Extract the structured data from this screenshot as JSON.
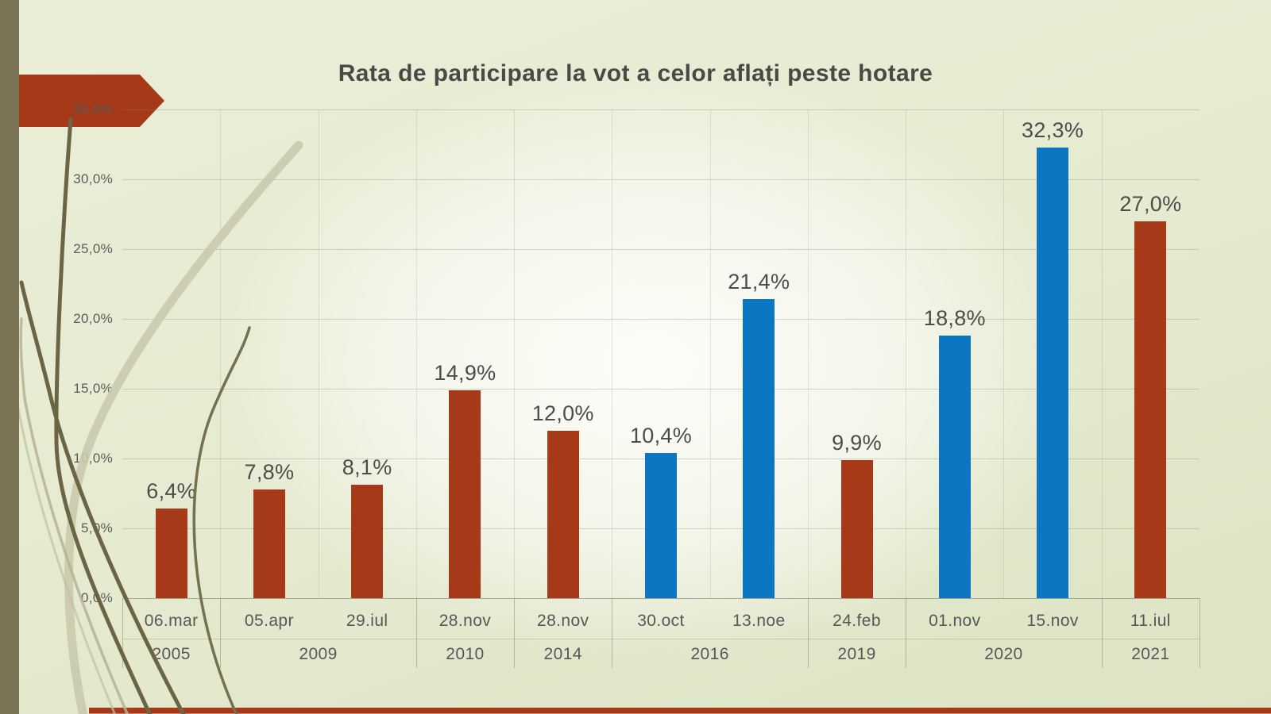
{
  "slide": {
    "theme_colors": {
      "background": "#e8ecd4",
      "band_olive": "#7a7355",
      "accent_rust": "#a63917",
      "accent_blue": "#0b76c2",
      "axis_text": "#5b5b59",
      "title_text": "#4a4945"
    }
  },
  "chart_data": {
    "type": "bar",
    "title": "Rata de participare la vot a celor aflați peste hotare",
    "xlabel": "",
    "ylabel": "",
    "ylim": [
      0,
      35
    ],
    "grid": true,
    "legend": "none",
    "y_ticks": [
      "0,0%",
      "5,0%",
      "10,0%",
      "15,0%",
      "20,0%",
      "25,0%",
      "30,0%",
      "35,0%"
    ],
    "y_tick_values": [
      0,
      5,
      10,
      15,
      20,
      25,
      30,
      35
    ],
    "categories": [
      "06.mar",
      "05.apr",
      "29.iul",
      "28.nov",
      "28.nov",
      "30.oct",
      "13.noe",
      "24.feb",
      "01.nov",
      "15.nov",
      "11.iul"
    ],
    "values": [
      6.4,
      7.8,
      8.1,
      14.9,
      12.0,
      10.4,
      21.4,
      9.9,
      18.8,
      32.3,
      27.0
    ],
    "bars": [
      {
        "date": "06.mar",
        "year": "2005",
        "value": 6.4,
        "label": "6,4%",
        "color": "rust"
      },
      {
        "date": "05.apr",
        "year": "2009",
        "value": 7.8,
        "label": "7,8%",
        "color": "rust"
      },
      {
        "date": "29.iul",
        "year": "2009",
        "value": 8.1,
        "label": "8,1%",
        "color": "rust"
      },
      {
        "date": "28.nov",
        "year": "2010",
        "value": 14.9,
        "label": "14,9%",
        "color": "rust"
      },
      {
        "date": "28.nov",
        "year": "2014",
        "value": 12.0,
        "label": "12,0%",
        "color": "rust"
      },
      {
        "date": "30.oct",
        "year": "2016",
        "value": 10.4,
        "label": "10,4%",
        "color": "blue"
      },
      {
        "date": "13.noe",
        "year": "2016",
        "value": 21.4,
        "label": "21,4%",
        "color": "blue"
      },
      {
        "date": "24.feb",
        "year": "2019",
        "value": 9.9,
        "label": "9,9%",
        "color": "rust"
      },
      {
        "date": "01.nov",
        "year": "2020",
        "value": 18.8,
        "label": "18,8%",
        "color": "blue"
      },
      {
        "date": "15.nov",
        "year": "2020",
        "value": 32.3,
        "label": "32,3%",
        "color": "blue"
      },
      {
        "date": "11.iul",
        "year": "2021",
        "value": 27.0,
        "label": "27,0%",
        "color": "rust"
      }
    ],
    "year_groups": [
      {
        "label": "2005",
        "start": 0,
        "span": 1
      },
      {
        "label": "2009",
        "start": 1,
        "span": 2
      },
      {
        "label": "2010",
        "start": 3,
        "span": 1
      },
      {
        "label": "2014",
        "start": 4,
        "span": 1
      },
      {
        "label": "2016",
        "start": 5,
        "span": 2
      },
      {
        "label": "2019",
        "start": 7,
        "span": 1
      },
      {
        "label": "2020",
        "start": 8,
        "span": 2
      },
      {
        "label": "2021",
        "start": 10,
        "span": 1
      }
    ],
    "palette": {
      "rust": "#a63917",
      "blue": "#0b76c2"
    }
  }
}
